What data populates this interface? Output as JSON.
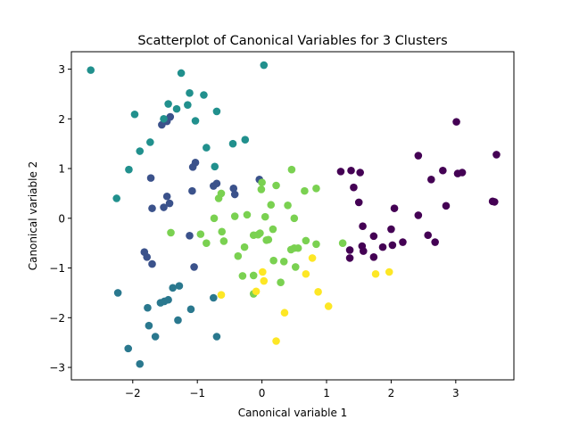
{
  "chart_data": {
    "type": "scatter",
    "title": "Scatterplot of Canonical Variables for 3 Clusters",
    "xlabel": "Canonical variable 1",
    "ylabel": "Canonical variable 2",
    "xlim": [
      -2.95,
      3.9
    ],
    "ylim": [
      -3.25,
      3.35
    ],
    "xticks": [
      -2,
      -1,
      0,
      1,
      2,
      3
    ],
    "yticks": [
      -3,
      -2,
      -1,
      0,
      1,
      2,
      3
    ],
    "grid": false,
    "legend": "none",
    "series": [
      {
        "color": "#440154",
        "points": [
          [
            1.22,
            0.94
          ],
          [
            1.38,
            0.96
          ],
          [
            1.52,
            0.92
          ],
          [
            1.42,
            0.62
          ],
          [
            1.5,
            0.32
          ],
          [
            1.56,
            -0.16
          ],
          [
            1.55,
            -0.56
          ],
          [
            1.57,
            -0.66
          ],
          [
            1.36,
            -0.64
          ],
          [
            1.36,
            -0.8
          ],
          [
            1.73,
            -0.36
          ],
          [
            1.73,
            -0.78
          ],
          [
            1.87,
            -0.58
          ],
          [
            2.02,
            -0.54
          ],
          [
            2.05,
            0.2
          ],
          [
            2.0,
            -0.22
          ],
          [
            2.18,
            -0.48
          ],
          [
            2.42,
            1.26
          ],
          [
            2.42,
            0.06
          ],
          [
            2.57,
            -0.34
          ],
          [
            2.62,
            0.78
          ],
          [
            2.68,
            -0.48
          ],
          [
            2.8,
            0.96
          ],
          [
            2.85,
            0.25
          ],
          [
            3.01,
            1.94
          ],
          [
            3.03,
            0.9
          ],
          [
            3.1,
            0.92
          ],
          [
            3.57,
            0.34
          ],
          [
            3.6,
            0.33
          ],
          [
            3.63,
            1.28
          ]
        ]
      },
      {
        "color": "#3b528b",
        "points": [
          [
            -1.72,
            0.81
          ],
          [
            -1.7,
            0.2
          ],
          [
            -1.52,
            0.22
          ],
          [
            -1.47,
            0.44
          ],
          [
            -1.43,
            0.3
          ],
          [
            -1.47,
            1.95
          ],
          [
            -1.42,
            2.04
          ],
          [
            -1.55,
            1.88
          ],
          [
            -1.07,
            1.03
          ],
          [
            -1.03,
            1.12
          ],
          [
            -1.08,
            0.55
          ],
          [
            -0.75,
            0.65
          ],
          [
            -0.7,
            0.7
          ],
          [
            -0.44,
            0.6
          ],
          [
            -0.42,
            0.48
          ],
          [
            -0.04,
            0.78
          ],
          [
            -1.12,
            -0.35
          ],
          [
            -1.82,
            -0.68
          ],
          [
            -1.78,
            -0.78
          ],
          [
            -1.7,
            -0.92
          ],
          [
            -1.05,
            -0.98
          ]
        ]
      },
      {
        "color": "#21908d",
        "points": [
          [
            -2.65,
            2.98
          ],
          [
            -2.25,
            0.4
          ],
          [
            -2.06,
            0.98
          ],
          [
            -1.97,
            2.09
          ],
          [
            -1.89,
            1.35
          ],
          [
            -1.73,
            1.53
          ],
          [
            -1.52,
            2.0
          ],
          [
            -1.45,
            2.3
          ],
          [
            -1.32,
            2.2
          ],
          [
            -1.25,
            2.92
          ],
          [
            -1.15,
            2.28
          ],
          [
            -1.12,
            2.52
          ],
          [
            -1.03,
            1.96
          ],
          [
            -0.9,
            2.48
          ],
          [
            -0.86,
            1.42
          ],
          [
            -0.7,
            2.15
          ],
          [
            -0.73,
            1.04
          ],
          [
            -0.45,
            1.5
          ],
          [
            -0.26,
            1.58
          ],
          [
            0.03,
            3.08
          ]
        ]
      },
      {
        "color": "#2a788e",
        "points": [
          [
            -2.23,
            -1.5
          ],
          [
            -2.07,
            -2.62
          ],
          [
            -1.89,
            -2.93
          ],
          [
            -1.77,
            -1.8
          ],
          [
            -1.75,
            -2.16
          ],
          [
            -1.65,
            -2.38
          ],
          [
            -1.57,
            -1.7
          ],
          [
            -1.51,
            -1.67
          ],
          [
            -1.45,
            -1.64
          ],
          [
            -1.38,
            -1.4
          ],
          [
            -1.28,
            -1.36
          ],
          [
            -1.3,
            -2.05
          ],
          [
            -1.1,
            -1.83
          ],
          [
            -0.75,
            -1.6
          ],
          [
            -0.7,
            -2.38
          ]
        ]
      },
      {
        "color": "#7ad151",
        "points": [
          [
            -1.41,
            -0.29
          ],
          [
            -0.95,
            -0.32
          ],
          [
            -0.86,
            -0.5
          ],
          [
            -0.74,
            0.0
          ],
          [
            -0.67,
            0.4
          ],
          [
            -0.63,
            0.5
          ],
          [
            -0.62,
            -0.27
          ],
          [
            -0.59,
            -0.46
          ],
          [
            -0.42,
            0.04
          ],
          [
            -0.37,
            -0.76
          ],
          [
            -0.3,
            -1.16
          ],
          [
            -0.27,
            -0.58
          ],
          [
            -0.23,
            0.07
          ],
          [
            -0.13,
            -1.15
          ],
          [
            -0.13,
            -0.34
          ],
          [
            -0.06,
            -0.33
          ],
          [
            -0.03,
            -0.3
          ],
          [
            -0.01,
            0.58
          ],
          [
            0.0,
            0.72
          ],
          [
            0.07,
            -0.44
          ],
          [
            0.05,
            0.03
          ],
          [
            0.1,
            -0.43
          ],
          [
            0.14,
            0.27
          ],
          [
            0.17,
            -0.22
          ],
          [
            0.18,
            -0.85
          ],
          [
            0.22,
            0.66
          ],
          [
            0.29,
            -1.29
          ],
          [
            0.34,
            -0.87
          ],
          [
            0.4,
            0.26
          ],
          [
            0.45,
            -0.63
          ],
          [
            0.5,
            -0.6
          ],
          [
            0.46,
            0.98
          ],
          [
            0.5,
            0.0
          ],
          [
            0.52,
            -0.98
          ],
          [
            0.56,
            -0.6
          ],
          [
            0.66,
            0.55
          ],
          [
            0.68,
            -0.45
          ],
          [
            0.84,
            -0.52
          ],
          [
            0.84,
            0.6
          ],
          [
            -0.13,
            -1.52
          ],
          [
            1.25,
            -0.5
          ]
        ]
      },
      {
        "color": "#fde725",
        "points": [
          [
            -0.63,
            -1.54
          ],
          [
            -0.09,
            -1.47
          ],
          [
            0.01,
            -1.08
          ],
          [
            0.03,
            -1.26
          ],
          [
            0.22,
            -2.47
          ],
          [
            0.35,
            -1.9
          ],
          [
            0.68,
            -1.12
          ],
          [
            0.78,
            -0.8
          ],
          [
            0.87,
            -1.48
          ],
          [
            1.03,
            -1.77
          ],
          [
            1.76,
            -1.12
          ],
          [
            1.97,
            -1.08
          ]
        ]
      }
    ]
  }
}
